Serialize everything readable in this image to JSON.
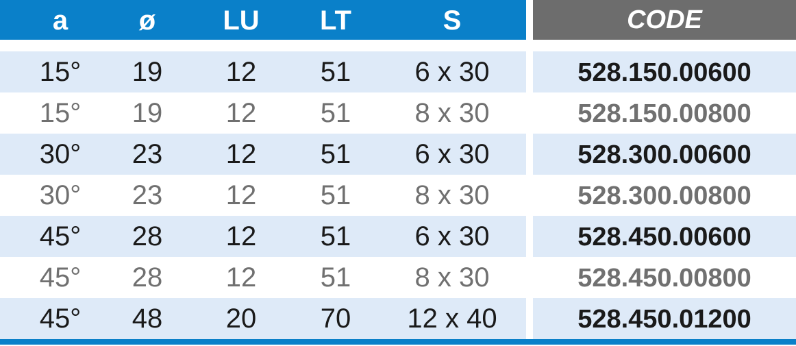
{
  "header": {
    "columns": [
      "a",
      "ø",
      "LU",
      "LT",
      "S"
    ],
    "code": "CODE"
  },
  "rows": [
    [
      "15°",
      "19",
      "12",
      "51",
      "6 x 30",
      "528.150.00600"
    ],
    [
      "15°",
      "19",
      "12",
      "51",
      "8 x 30",
      "528.150.00800"
    ],
    [
      "30°",
      "23",
      "12",
      "51",
      "6 x 30",
      "528.300.00600"
    ],
    [
      "30°",
      "23",
      "12",
      "51",
      "8 x 30",
      "528.300.00800"
    ],
    [
      "45°",
      "28",
      "12",
      "51",
      "6 x 30",
      "528.450.00600"
    ],
    [
      "45°",
      "28",
      "12",
      "51",
      "8 x 30",
      "528.450.00800"
    ],
    [
      "45°",
      "48",
      "20",
      "70",
      "12 x 40",
      "528.450.01200"
    ]
  ],
  "colors": {
    "header_blue": "#0a80c9",
    "code_header_gray": "#6d6d6d",
    "row_alt": "#deeaf8",
    "dim_text": "#707070"
  }
}
